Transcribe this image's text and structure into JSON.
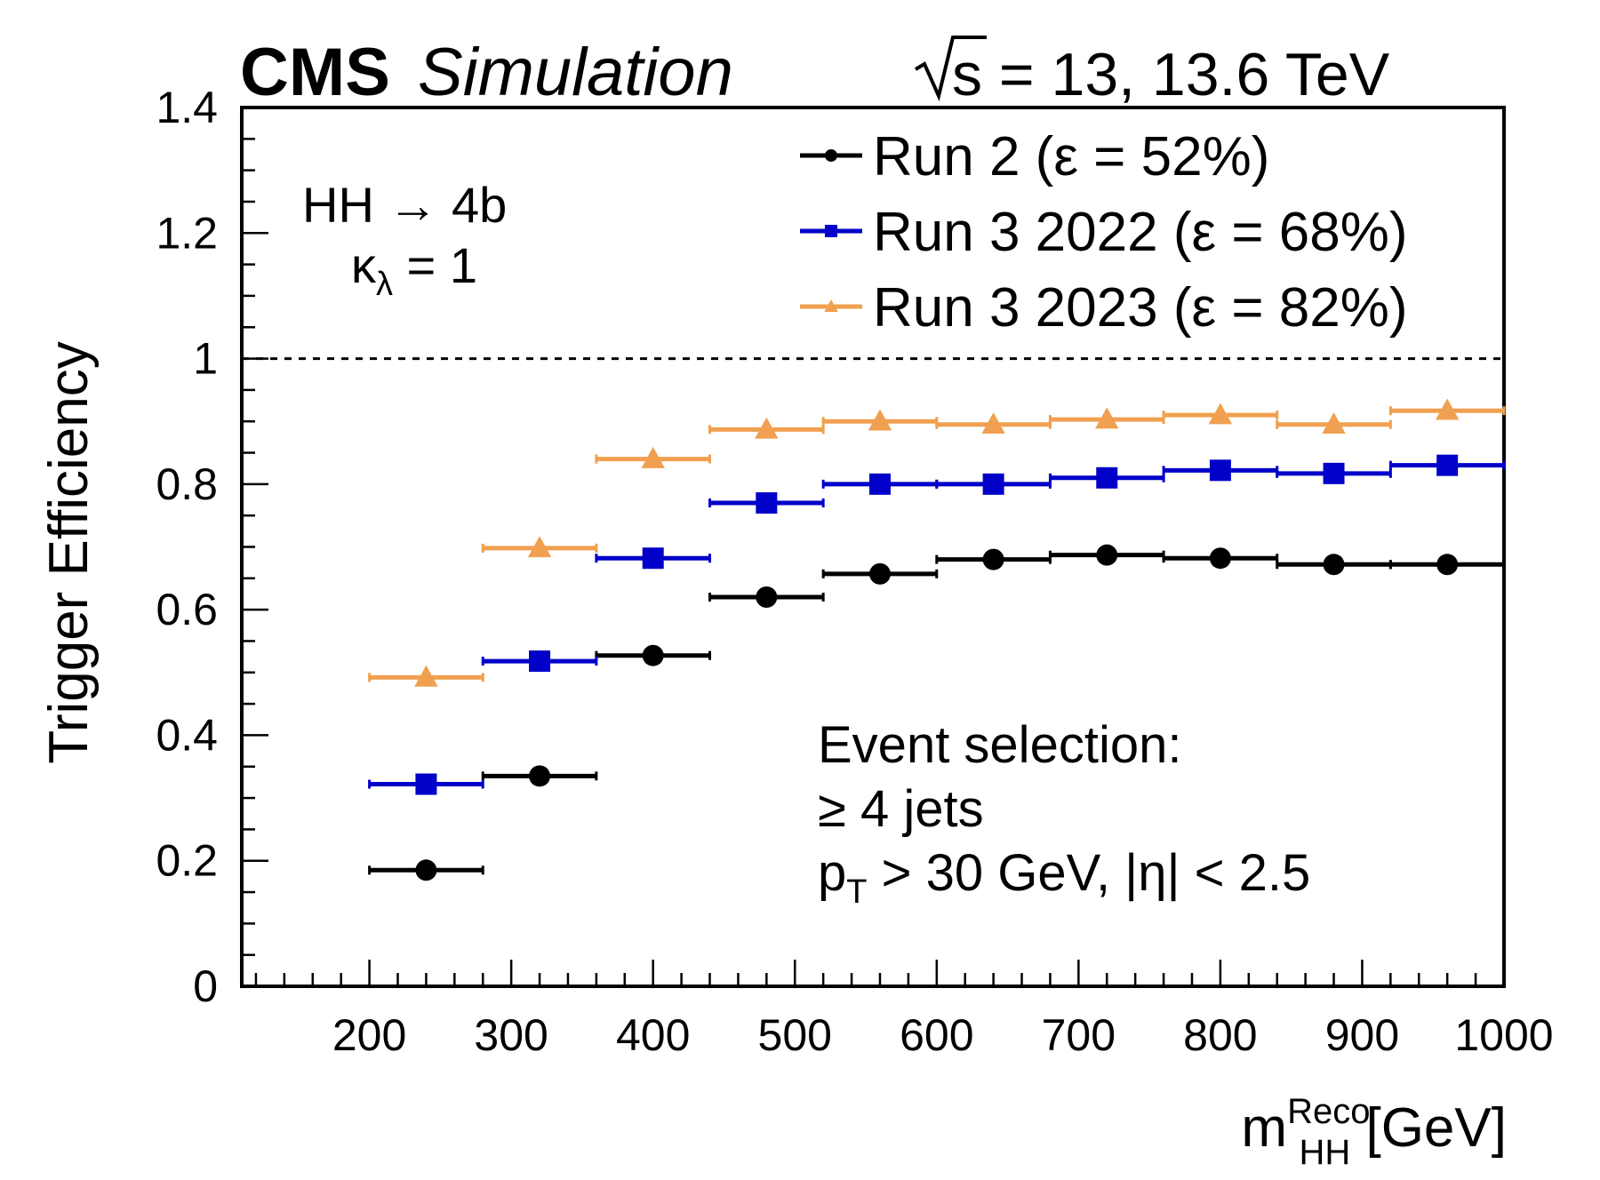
{
  "header": {
    "cms_label": "CMS",
    "sim_label": "Simulation",
    "energy_label": "s = 13, 13.6 TeV"
  },
  "process": {
    "line1": "HH → 4b",
    "kappa_symbol": "κ",
    "kappa_sub": "λ",
    "kappa_value": " = 1"
  },
  "selection": {
    "title": "Event selection:",
    "jets": "≥ 4 jets",
    "pt_symbol": "p",
    "pt_sub": "T",
    "pt_cut": " > 30 GeV, |η| < 2.5"
  },
  "colors": {
    "run2": "#000000",
    "run3_2022": "#0000c8",
    "run3_2023": "#f0a050"
  },
  "chart_data": {
    "type": "scatter",
    "xlabel_main": "m",
    "xlabel_sup": "Reco",
    "xlabel_sub": "HH",
    "xlabel_unit": " [GeV]",
    "ylabel": "Trigger Efficiency",
    "xlim": [
      110,
      1000
    ],
    "ylim": [
      0,
      1.4
    ],
    "x_ticks": [
      "200",
      "300",
      "400",
      "500",
      "600",
      "700",
      "800",
      "900",
      "1000"
    ],
    "y_ticks": [
      "0",
      "0.2",
      "0.4",
      "0.6",
      "0.8",
      "1",
      "1.2",
      "1.4"
    ],
    "reference_line": 1.0,
    "bin_edges": [
      200,
      280,
      360,
      440,
      520,
      600,
      680,
      760,
      840,
      920,
      1000
    ],
    "legend_position": "top-right",
    "series": [
      {
        "name": "Run 2 (ε = 52%)",
        "marker": "circle",
        "color_key": "run2",
        "values": [
          0.185,
          0.335,
          0.527,
          0.62,
          0.657,
          0.68,
          0.687,
          0.682,
          0.672,
          0.672
        ]
      },
      {
        "name": "Run 3 2022 (ε = 68%)",
        "marker": "square",
        "color_key": "run3_2022",
        "values": [
          0.322,
          0.518,
          0.682,
          0.77,
          0.8,
          0.8,
          0.81,
          0.822,
          0.817,
          0.83
        ]
      },
      {
        "name": "Run 3 2023 (ε = 82%)",
        "marker": "triangle",
        "color_key": "run3_2023",
        "values": [
          0.492,
          0.698,
          0.84,
          0.887,
          0.9,
          0.895,
          0.903,
          0.91,
          0.895,
          0.917
        ]
      }
    ]
  }
}
